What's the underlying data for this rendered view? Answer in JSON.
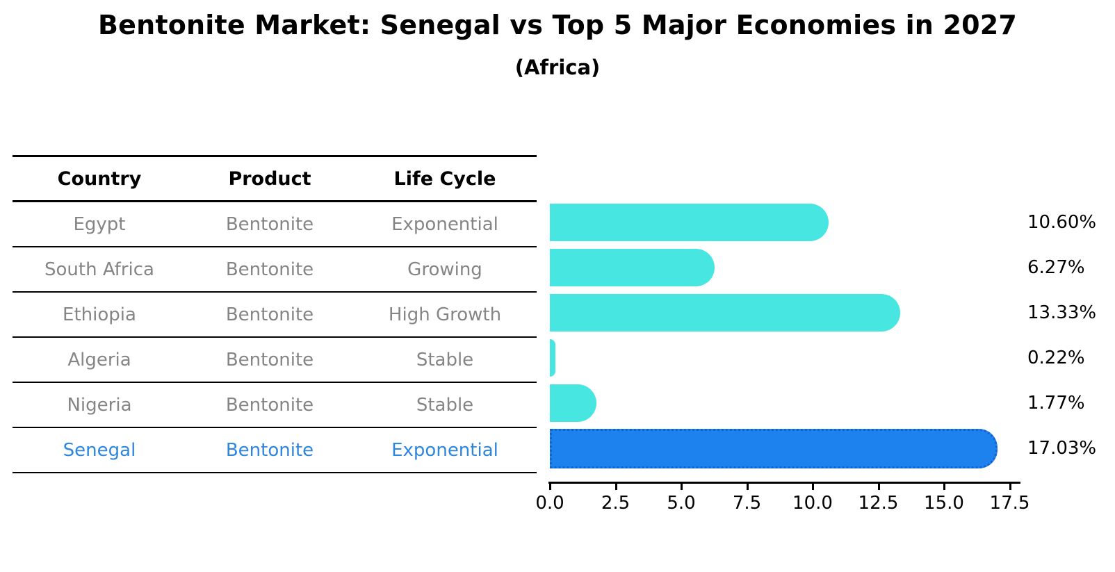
{
  "title": "Bentonite Market: Senegal vs Top 5 Major Economies in 2027",
  "subtitle": "(Africa)",
  "colors": {
    "bar_default": "#47E6E0",
    "bar_highlight": "#1E82EE",
    "bar_highlight_border": "#1263D2",
    "text_muted": "#858585",
    "text_highlight": "#2E86DE",
    "axis": "#000000"
  },
  "table": {
    "headers": [
      "Country",
      "Product",
      "Life Cycle"
    ],
    "rows": [
      {
        "country": "Egypt",
        "product": "Bentonite",
        "life_cycle": "Exponential",
        "highlight": false
      },
      {
        "country": "South Africa",
        "product": "Bentonite",
        "life_cycle": "Growing",
        "highlight": false
      },
      {
        "country": "Ethiopia",
        "product": "Bentonite",
        "life_cycle": "High Growth",
        "highlight": false
      },
      {
        "country": "Algeria",
        "product": "Bentonite",
        "life_cycle": "Stable",
        "highlight": false
      },
      {
        "country": "Nigeria",
        "product": "Bentonite",
        "life_cycle": "Stable",
        "highlight": false
      },
      {
        "country": "Senegal",
        "product": "Bentonite",
        "life_cycle": "Exponential",
        "highlight": true
      }
    ]
  },
  "chart_data": {
    "type": "bar",
    "orientation": "horizontal",
    "title": "Bentonite Market: Senegal vs Top 5 Major Economies in 2027",
    "subtitle": "(Africa)",
    "categories": [
      "Egypt",
      "South Africa",
      "Ethiopia",
      "Algeria",
      "Nigeria",
      "Senegal"
    ],
    "values": [
      10.6,
      6.27,
      13.33,
      0.22,
      1.77,
      17.03
    ],
    "value_labels": [
      "10.60%",
      "6.27%",
      "13.33%",
      "0.22%",
      "1.77%",
      "17.03%"
    ],
    "unit": "%",
    "highlight_index": 5,
    "x_ticks": [
      0.0,
      2.5,
      5.0,
      7.5,
      10.0,
      12.5,
      15.0,
      17.5
    ],
    "x_tick_labels": [
      "0.0",
      "2.5",
      "5.0",
      "7.5",
      "10.0",
      "12.5",
      "15.0",
      "17.5"
    ],
    "xlim": [
      0,
      17.9
    ],
    "grid": false,
    "legend": null
  }
}
